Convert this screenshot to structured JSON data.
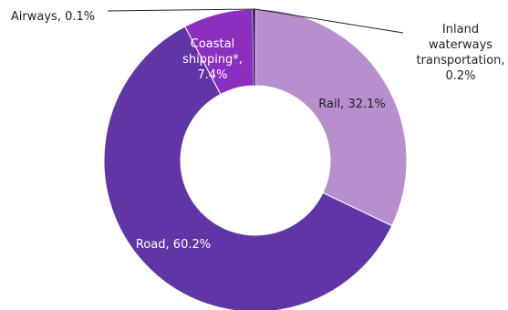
{
  "chart_data": {
    "type": "pie",
    "style": "donut",
    "categories": [
      "Rail",
      "Road",
      "Coastal shipping*",
      "Inland waterways transportation",
      "Airways"
    ],
    "values": [
      32.1,
      60.2,
      7.4,
      0.2,
      0.1
    ],
    "unit": "%",
    "labels": [
      {
        "lines": [
          "Rail, 32.1%"
        ]
      },
      {
        "lines": [
          "Road, 60.2%"
        ]
      },
      {
        "lines": [
          "Coastal",
          "shipping*,",
          "7.4%"
        ]
      },
      {
        "lines": [
          "Inland",
          "waterways",
          "transportation,",
          "0.2%"
        ]
      },
      {
        "lines": [
          "Airways, 0.1%"
        ]
      }
    ],
    "colors": [
      "#b68fcc",
      "#6235a6",
      "#8b2fc0",
      "#4a2375",
      "#4a2375"
    ],
    "label_colors": [
      "#222222",
      "#ffffff",
      "#ffffff",
      "#222222",
      "#222222"
    ],
    "legend": "none"
  }
}
